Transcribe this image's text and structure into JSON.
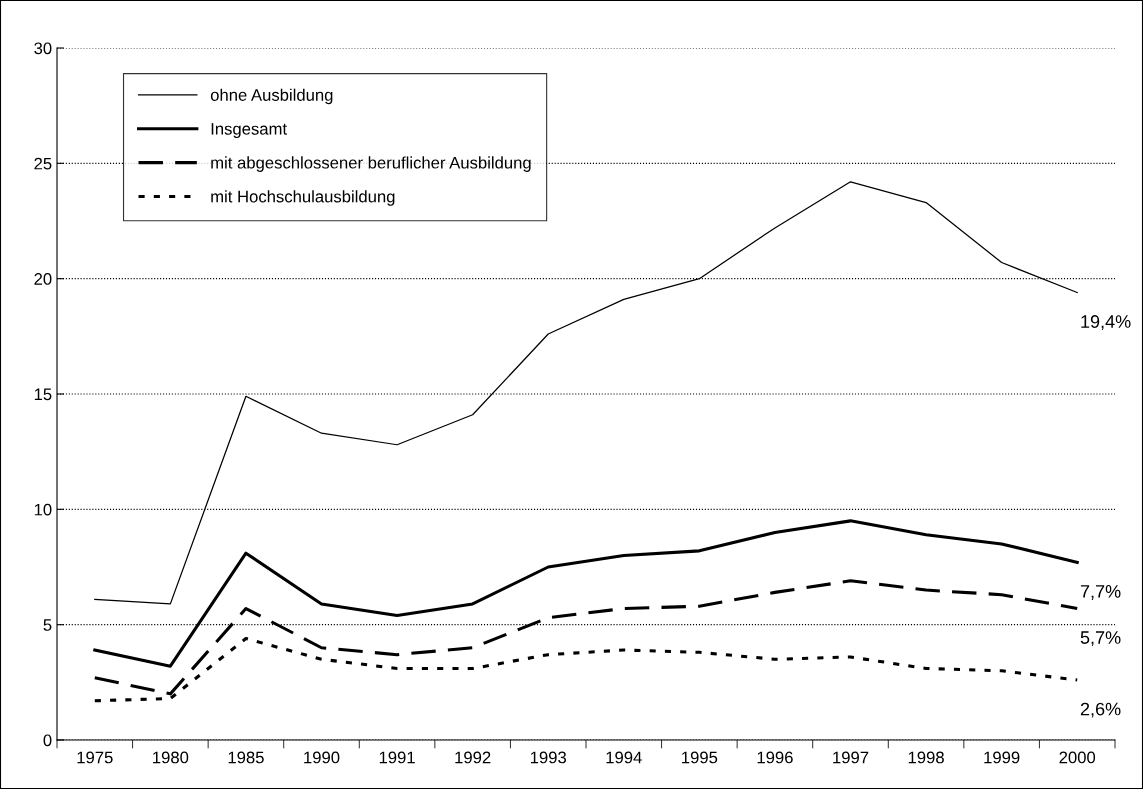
{
  "chart_data": {
    "type": "line",
    "categories": [
      "1975",
      "1980",
      "1985",
      "1990",
      "1991",
      "1992",
      "1993",
      "1994",
      "1995",
      "1996",
      "1997",
      "1998",
      "1999",
      "2000"
    ],
    "series": [
      {
        "name": "ohne Ausbildung",
        "color": "#000000",
        "line_style": "solid",
        "values": [
          6.1,
          5.9,
          14.9,
          13.3,
          12.8,
          14.1,
          17.6,
          19.1,
          20.0,
          22.2,
          24.2,
          23.3,
          20.7,
          19.4
        ]
      },
      {
        "name": "Insgesamt",
        "color": "#000000",
        "line_style": "solid",
        "values": [
          3.9,
          3.2,
          8.1,
          5.9,
          5.4,
          5.9,
          7.5,
          8.0,
          8.2,
          9.0,
          9.5,
          8.9,
          8.5,
          7.7
        ]
      },
      {
        "name": "mit abgeschlossener beruflicher Ausbildung",
        "color": "#000000",
        "line_style": "dashed",
        "values": [
          2.7,
          2.0,
          5.7,
          4.0,
          3.7,
          4.0,
          5.3,
          5.7,
          5.8,
          6.4,
          6.9,
          6.5,
          6.3,
          5.7
        ]
      },
      {
        "name": "mit Hochschulausbildung",
        "color": "#000000",
        "line_style": "dotted",
        "values": [
          1.7,
          1.8,
          4.4,
          3.5,
          3.1,
          3.1,
          3.7,
          3.9,
          3.8,
          3.5,
          3.6,
          3.1,
          3.0,
          2.6
        ]
      }
    ],
    "ylim": [
      0,
      30
    ],
    "yticks": [
      0,
      5,
      10,
      15,
      20,
      25,
      30
    ],
    "grid": "y",
    "legend": "top left",
    "marker": "none",
    "annotations": [
      {
        "text": "19,4%",
        "x": "2000",
        "y": 19.4
      },
      {
        "text": "7,7%",
        "x": "2000",
        "y": 7.7
      },
      {
        "text": "5,7%",
        "x": "2000",
        "y": 5.7
      },
      {
        "text": "2,6%",
        "x": "2000",
        "y": 2.6
      }
    ]
  }
}
